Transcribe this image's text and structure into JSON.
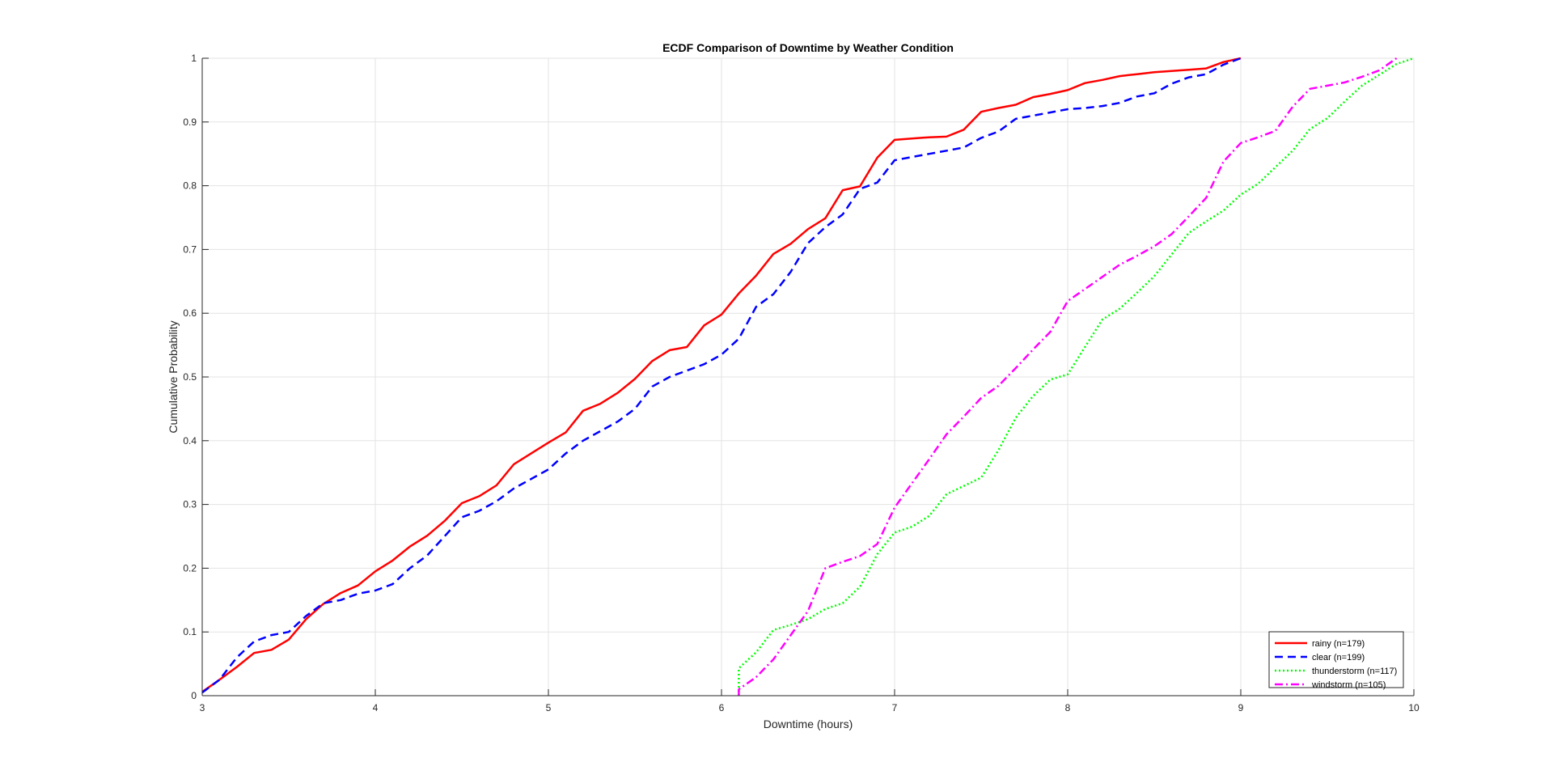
{
  "chart_data": {
    "type": "line",
    "title": "ECDF Comparison of Downtime by Weather Condition",
    "xlabel": "Downtime (hours)",
    "ylabel": "Cumulative Probability",
    "xlim": [
      3,
      10
    ],
    "ylim": [
      0,
      1
    ],
    "xticks": [
      "3",
      "4",
      "5",
      "6",
      "7",
      "8",
      "9",
      "10"
    ],
    "yticks": [
      "0",
      "0.1",
      "0.2",
      "0.3",
      "0.4",
      "0.5",
      "0.6",
      "0.7",
      "0.8",
      "0.9",
      "1"
    ],
    "grid": true,
    "legend_position": "bottom-right",
    "series": [
      {
        "name": "rainy (n=179)",
        "color": "#ff0000",
        "style": "solid",
        "points": [
          [
            3.0,
            0.006
          ],
          [
            3.1,
            0.025
          ],
          [
            3.2,
            0.045
          ],
          [
            3.3,
            0.067
          ],
          [
            3.4,
            0.072
          ],
          [
            3.5,
            0.088
          ],
          [
            3.6,
            0.12
          ],
          [
            3.7,
            0.144
          ],
          [
            3.8,
            0.161
          ],
          [
            3.9,
            0.173
          ],
          [
            4.0,
            0.195
          ],
          [
            4.1,
            0.212
          ],
          [
            4.2,
            0.234
          ],
          [
            4.3,
            0.251
          ],
          [
            4.4,
            0.274
          ],
          [
            4.5,
            0.302
          ],
          [
            4.6,
            0.313
          ],
          [
            4.7,
            0.33
          ],
          [
            4.8,
            0.363
          ],
          [
            4.9,
            0.38
          ],
          [
            5.0,
            0.397
          ],
          [
            5.1,
            0.413
          ],
          [
            5.2,
            0.447
          ],
          [
            5.3,
            0.458
          ],
          [
            5.4,
            0.475
          ],
          [
            5.5,
            0.497
          ],
          [
            5.6,
            0.525
          ],
          [
            5.7,
            0.542
          ],
          [
            5.8,
            0.547
          ],
          [
            5.9,
            0.581
          ],
          [
            6.0,
            0.598
          ],
          [
            6.1,
            0.631
          ],
          [
            6.2,
            0.659
          ],
          [
            6.3,
            0.693
          ],
          [
            6.4,
            0.709
          ],
          [
            6.5,
            0.732
          ],
          [
            6.6,
            0.749
          ],
          [
            6.7,
            0.793
          ],
          [
            6.8,
            0.799
          ],
          [
            6.9,
            0.844
          ],
          [
            7.0,
            0.872
          ],
          [
            7.1,
            0.874
          ],
          [
            7.2,
            0.876
          ],
          [
            7.3,
            0.877
          ],
          [
            7.4,
            0.888
          ],
          [
            7.5,
            0.916
          ],
          [
            7.6,
            0.922
          ],
          [
            7.7,
            0.927
          ],
          [
            7.8,
            0.939
          ],
          [
            7.9,
            0.944
          ],
          [
            8.0,
            0.95
          ],
          [
            8.1,
            0.961
          ],
          [
            8.2,
            0.966
          ],
          [
            8.3,
            0.972
          ],
          [
            8.4,
            0.975
          ],
          [
            8.5,
            0.978
          ],
          [
            8.6,
            0.98
          ],
          [
            8.7,
            0.982
          ],
          [
            8.8,
            0.984
          ],
          [
            8.9,
            0.994
          ],
          [
            9.0,
            1.0
          ]
        ]
      },
      {
        "name": "clear (n=199)",
        "color": "#0000ff",
        "style": "dashed",
        "points": [
          [
            3.0,
            0.005
          ],
          [
            3.1,
            0.025
          ],
          [
            3.2,
            0.06
          ],
          [
            3.3,
            0.085
          ],
          [
            3.4,
            0.095
          ],
          [
            3.5,
            0.1
          ],
          [
            3.6,
            0.125
          ],
          [
            3.7,
            0.145
          ],
          [
            3.8,
            0.15
          ],
          [
            3.9,
            0.16
          ],
          [
            4.0,
            0.165
          ],
          [
            4.1,
            0.175
          ],
          [
            4.2,
            0.2
          ],
          [
            4.3,
            0.22
          ],
          [
            4.4,
            0.25
          ],
          [
            4.5,
            0.28
          ],
          [
            4.6,
            0.29
          ],
          [
            4.7,
            0.305
          ],
          [
            4.8,
            0.325
          ],
          [
            4.9,
            0.34
          ],
          [
            5.0,
            0.355
          ],
          [
            5.1,
            0.38
          ],
          [
            5.2,
            0.4
          ],
          [
            5.3,
            0.415
          ],
          [
            5.4,
            0.43
          ],
          [
            5.5,
            0.45
          ],
          [
            5.6,
            0.485
          ],
          [
            5.7,
            0.5
          ],
          [
            5.8,
            0.51
          ],
          [
            5.9,
            0.52
          ],
          [
            6.0,
            0.535
          ],
          [
            6.1,
            0.56
          ],
          [
            6.2,
            0.61
          ],
          [
            6.3,
            0.63
          ],
          [
            6.4,
            0.665
          ],
          [
            6.5,
            0.71
          ],
          [
            6.6,
            0.735
          ],
          [
            6.7,
            0.755
          ],
          [
            6.8,
            0.795
          ],
          [
            6.9,
            0.805
          ],
          [
            7.0,
            0.84
          ],
          [
            7.1,
            0.845
          ],
          [
            7.2,
            0.85
          ],
          [
            7.3,
            0.855
          ],
          [
            7.4,
            0.86
          ],
          [
            7.5,
            0.875
          ],
          [
            7.6,
            0.885
          ],
          [
            7.7,
            0.905
          ],
          [
            7.8,
            0.91
          ],
          [
            7.9,
            0.915
          ],
          [
            8.0,
            0.92
          ],
          [
            8.1,
            0.922
          ],
          [
            8.2,
            0.925
          ],
          [
            8.3,
            0.93
          ],
          [
            8.4,
            0.94
          ],
          [
            8.5,
            0.945
          ],
          [
            8.6,
            0.96
          ],
          [
            8.7,
            0.97
          ],
          [
            8.8,
            0.975
          ],
          [
            8.9,
            0.99
          ],
          [
            9.0,
            1.0
          ]
        ]
      },
      {
        "name": "thunderstorm (n=117)",
        "color": "#00ff00",
        "style": "dotted",
        "points": [
          [
            6.1,
            0.0
          ],
          [
            6.1,
            0.043
          ],
          [
            6.2,
            0.068
          ],
          [
            6.3,
            0.103
          ],
          [
            6.4,
            0.111
          ],
          [
            6.5,
            0.12
          ],
          [
            6.6,
            0.136
          ],
          [
            6.7,
            0.145
          ],
          [
            6.8,
            0.171
          ],
          [
            6.9,
            0.222
          ],
          [
            7.0,
            0.256
          ],
          [
            7.1,
            0.265
          ],
          [
            7.2,
            0.282
          ],
          [
            7.3,
            0.316
          ],
          [
            7.4,
            0.329
          ],
          [
            7.5,
            0.342
          ],
          [
            7.6,
            0.385
          ],
          [
            7.7,
            0.436
          ],
          [
            7.8,
            0.47
          ],
          [
            7.9,
            0.496
          ],
          [
            8.0,
            0.504
          ],
          [
            8.1,
            0.547
          ],
          [
            8.2,
            0.59
          ],
          [
            8.3,
            0.607
          ],
          [
            8.4,
            0.632
          ],
          [
            8.5,
            0.658
          ],
          [
            8.6,
            0.692
          ],
          [
            8.7,
            0.726
          ],
          [
            8.8,
            0.744
          ],
          [
            8.9,
            0.761
          ],
          [
            9.0,
            0.786
          ],
          [
            9.1,
            0.803
          ],
          [
            9.2,
            0.829
          ],
          [
            9.3,
            0.855
          ],
          [
            9.4,
            0.889
          ],
          [
            9.5,
            0.906
          ],
          [
            9.6,
            0.932
          ],
          [
            9.7,
            0.957
          ],
          [
            9.8,
            0.974
          ],
          [
            9.9,
            0.991
          ],
          [
            10.0,
            1.0
          ]
        ]
      },
      {
        "name": "windstorm (n=105)",
        "color": "#ff00ff",
        "style": "dashdot",
        "points": [
          [
            6.1,
            0.0
          ],
          [
            6.1,
            0.01
          ],
          [
            6.2,
            0.029
          ],
          [
            6.3,
            0.057
          ],
          [
            6.4,
            0.095
          ],
          [
            6.5,
            0.133
          ],
          [
            6.6,
            0.2
          ],
          [
            6.7,
            0.21
          ],
          [
            6.8,
            0.219
          ],
          [
            6.9,
            0.238
          ],
          [
            7.0,
            0.295
          ],
          [
            7.1,
            0.333
          ],
          [
            7.2,
            0.371
          ],
          [
            7.3,
            0.41
          ],
          [
            7.4,
            0.438
          ],
          [
            7.5,
            0.467
          ],
          [
            7.6,
            0.486
          ],
          [
            7.7,
            0.514
          ],
          [
            7.8,
            0.543
          ],
          [
            7.9,
            0.571
          ],
          [
            8.0,
            0.619
          ],
          [
            8.1,
            0.638
          ],
          [
            8.2,
            0.657
          ],
          [
            8.3,
            0.676
          ],
          [
            8.4,
            0.69
          ],
          [
            8.5,
            0.705
          ],
          [
            8.6,
            0.724
          ],
          [
            8.7,
            0.752
          ],
          [
            8.8,
            0.781
          ],
          [
            8.9,
            0.838
          ],
          [
            9.0,
            0.867
          ],
          [
            9.1,
            0.876
          ],
          [
            9.2,
            0.886
          ],
          [
            9.3,
            0.924
          ],
          [
            9.4,
            0.952
          ],
          [
            9.5,
            0.957
          ],
          [
            9.6,
            0.962
          ],
          [
            9.7,
            0.971
          ],
          [
            9.8,
            0.981
          ],
          [
            9.9,
            1.0
          ]
        ]
      }
    ]
  }
}
